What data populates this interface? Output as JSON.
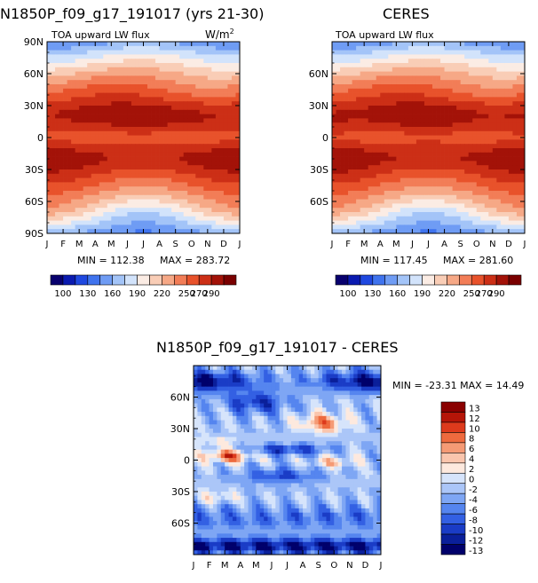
{
  "chart_data": [
    {
      "type": "heatmap",
      "title": "N1850P_f09_g17_191017 (yrs 21-30)",
      "subtitle": "TOA upward LW flux",
      "units": "W/m2",
      "x": [
        "J",
        "F",
        "M",
        "A",
        "M",
        "J",
        "J",
        "A",
        "S",
        "O",
        "N",
        "D",
        "J"
      ],
      "y_ticks": [
        "90N",
        "60N",
        "30N",
        "0",
        "30S",
        "60S",
        "90S"
      ],
      "stats": {
        "min_text": "MIN = 112.38",
        "max_text": "MAX = 283.72"
      },
      "colorbar": {
        "levels": [
          100,
          130,
          160,
          190,
          220,
          250,
          270,
          290
        ]
      },
      "zlim": [
        100,
        290
      ]
    },
    {
      "type": "heatmap",
      "title": "CERES",
      "subtitle": "TOA upward LW flux",
      "x": [
        "J",
        "F",
        "M",
        "A",
        "M",
        "J",
        "J",
        "A",
        "S",
        "O",
        "N",
        "D",
        "J"
      ],
      "y_ticks": [
        "60N",
        "30N",
        "0",
        "30S",
        "60S"
      ],
      "stats": {
        "min_text": "MIN = 117.45",
        "max_text": "MAX = 281.60"
      },
      "colorbar": {
        "levels": [
          100,
          130,
          160,
          190,
          220,
          250,
          270,
          290
        ]
      },
      "zlim": [
        100,
        290
      ]
    },
    {
      "type": "heatmap",
      "title": "N1850P_f09_g17_191017 - CERES",
      "x": [
        "J",
        "F",
        "M",
        "A",
        "M",
        "J",
        "J",
        "A",
        "S",
        "O",
        "N",
        "D",
        "J"
      ],
      "y_ticks": [
        "60N",
        "30N",
        "0",
        "30S",
        "60S"
      ],
      "stats": {
        "text": "MIN = -23.31 MAX = 14.49"
      },
      "colorbar": {
        "levels": [
          13,
          12,
          10,
          8,
          6,
          4,
          2,
          0,
          -2,
          -4,
          -6,
          -8,
          -10,
          -12,
          -13
        ]
      },
      "zlim": [
        -13,
        13
      ]
    }
  ],
  "colors": {
    "flux_scale": [
      "#08006e",
      "#0a1ab0",
      "#1f48e0",
      "#3f73ee",
      "#6f9cf4",
      "#a3c4f8",
      "#d2e3fb",
      "#fbece4",
      "#f9cdb6",
      "#f6a886",
      "#f27d57",
      "#e8522b",
      "#cc2f16",
      "#a31208",
      "#7a0000"
    ],
    "diff_scale": [
      "#00006b",
      "#0a1f9a",
      "#1a3cc6",
      "#3360e3",
      "#5585ef",
      "#7ea6f4",
      "#abc6f8",
      "#d6e4fb",
      "#fde9de",
      "#fac5ad",
      "#f59a75",
      "#ee6a3e",
      "#dd3a1c",
      "#b51508",
      "#8a0000"
    ]
  }
}
